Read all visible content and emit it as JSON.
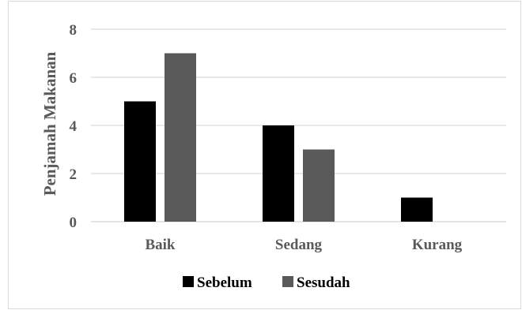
{
  "chart_data": {
    "type": "bar",
    "title": "",
    "xlabel": "",
    "ylabel": "Penjamah Makanan",
    "categories": [
      "Baik",
      "Sedang",
      "Kurang"
    ],
    "series": [
      {
        "name": "Sebelum",
        "values": [
          5,
          4,
          1
        ],
        "color": "#000000"
      },
      {
        "name": "Sesudah",
        "values": [
          7,
          3,
          0
        ],
        "color": "#595959"
      }
    ],
    "ylim": [
      0,
      8
    ],
    "yticks": [
      0,
      2,
      4,
      6,
      8
    ],
    "grid": true,
    "legend_position": "bottom"
  }
}
